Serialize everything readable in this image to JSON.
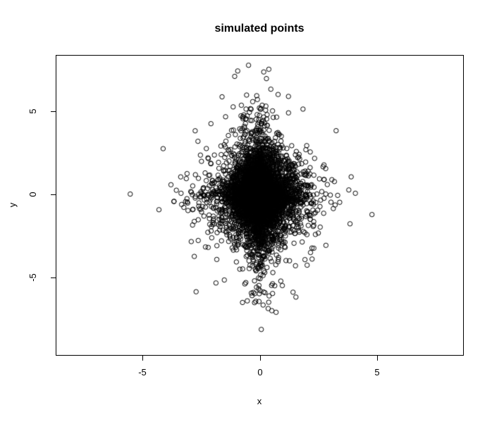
{
  "figure": {
    "background_color": "#ffffff",
    "foreground_color": "#000000"
  },
  "chart_data": {
    "type": "scatter",
    "title": "simulated points",
    "xlabel": "x",
    "ylabel": "y",
    "xlim": [
      -8.67,
      8.67
    ],
    "ylim": [
      -9.7,
      8.4
    ],
    "x_ticks": [
      -5,
      0,
      5
    ],
    "y_ticks": [
      5,
      0,
      -5
    ],
    "grid": "off",
    "legend": "none",
    "marker": "open-circle",
    "marker_color": "#000000",
    "marker_radius_px": 3.2,
    "marker_stroke_px": 1,
    "n_points_est": 6000,
    "distribution_est": "laplace",
    "x_scale_est": 0.55,
    "y_scale_est": 1.05,
    "x_data_min_est": -4.6,
    "x_data_max_est": 4.9,
    "y_data_min_est": -9.2,
    "y_data_max_est": 7.9,
    "shape_note": "dense black diamond-shaped core centered at origin with sparse open circles spiking along both axes"
  }
}
